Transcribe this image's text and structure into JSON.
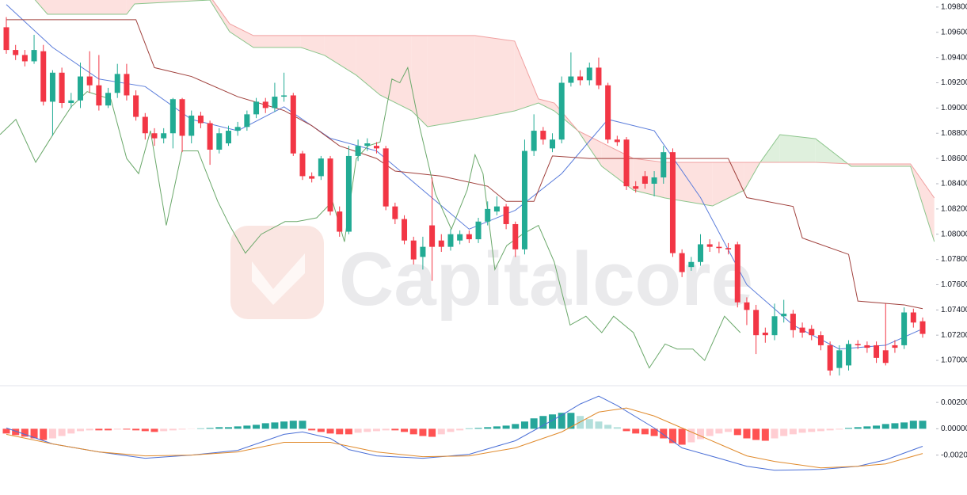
{
  "watermark": "Capitalcore",
  "chart_data": [
    {
      "type": "candlestick",
      "ylim": [
        1.06812,
        1.09856
      ],
      "yticks": [
        {
          "value": 1.098,
          "label": "1.09800"
        },
        {
          "value": 1.096,
          "label": "1.09600"
        },
        {
          "value": 1.094,
          "label": "1.09400"
        },
        {
          "value": 1.092,
          "label": "1.09200"
        },
        {
          "value": 1.09,
          "label": "1.09000"
        },
        {
          "value": 1.088,
          "label": "1.08800"
        },
        {
          "value": 1.086,
          "label": "1.08600"
        },
        {
          "value": 1.084,
          "label": "1.08400"
        },
        {
          "value": 1.082,
          "label": "1.08200"
        },
        {
          "value": 1.08,
          "label": "1.08000"
        },
        {
          "value": 1.078,
          "label": "1.07800"
        },
        {
          "value": 1.076,
          "label": "1.07600"
        },
        {
          "value": 1.074,
          "label": "1.07400"
        },
        {
          "value": 1.072,
          "label": "1.07200"
        },
        {
          "value": 1.07,
          "label": "1.07000"
        }
      ],
      "up_color": "#22ab94",
      "down_color": "#f23645",
      "open": [
        1.0964,
        1.0946,
        1.0942,
        1.0937,
        1.0945,
        1.0905,
        1.0928,
        1.0904,
        1.0906,
        1.0925,
        1.0918,
        1.0902,
        1.0912,
        1.0927,
        1.091,
        1.0893,
        1.088,
        1.0876,
        1.088,
        1.0907,
        1.0878,
        1.0894,
        1.0888,
        1.0867,
        1.0872,
        1.0882,
        1.0885,
        1.0895,
        1.0905,
        1.09,
        1.0909,
        1.091,
        1.0864,
        1.0846,
        1.0846,
        1.086,
        1.0818,
        1.0802,
        1.0862,
        1.087,
        1.087,
        1.0868,
        1.0822,
        1.0812,
        1.0795,
        1.0782,
        1.0807,
        1.0795,
        1.079,
        1.0795,
        1.08,
        1.0796,
        1.081,
        1.0818,
        1.0822,
        1.0808,
        1.0788,
        1.0866,
        1.0882,
        1.0868,
        1.0875,
        1.092,
        1.0925,
        1.0922,
        1.0932,
        1.0918,
        1.0875,
        1.0875,
        1.0838,
        1.0846,
        1.084,
        1.0845,
        1.0865,
        1.0785,
        1.0774,
        1.0778,
        1.0792,
        1.079,
        1.0789,
        1.0792,
        1.0746,
        1.074,
        1.0722,
        1.072,
        1.0735,
        1.0737,
        1.0726,
        1.0725,
        1.072,
        1.0712,
        1.0694,
        1.0696,
        1.0713,
        1.0712,
        1.0712,
        1.0708,
        1.0712,
        1.0712,
        1.0738,
        1.0731
      ],
      "high": [
        1.0972,
        1.095,
        1.0946,
        1.0958,
        1.095,
        1.093,
        1.0932,
        1.0912,
        1.0936,
        1.0945,
        1.0942,
        1.0916,
        1.0935,
        1.0935,
        1.0914,
        1.0896,
        1.0884,
        1.0884,
        1.0908,
        1.0908,
        1.0898,
        1.0897,
        1.089,
        1.0884,
        1.0886,
        1.0889,
        1.0898,
        1.0908,
        1.0908,
        1.092,
        1.0928,
        1.0912,
        1.0866,
        1.0849,
        1.0862,
        1.0862,
        1.0822,
        1.087,
        1.0875,
        1.0876,
        1.0873,
        1.087,
        1.0825,
        1.0815,
        1.0798,
        1.0798,
        1.0845,
        1.08,
        1.0804,
        1.0803,
        1.0803,
        1.0813,
        1.0826,
        1.083,
        1.0824,
        1.081,
        1.0875,
        1.0895,
        1.0885,
        1.088,
        1.0925,
        1.0944,
        1.093,
        1.0936,
        1.094,
        1.092,
        1.0878,
        1.0877,
        1.0842,
        1.085,
        1.085,
        1.087,
        1.0868,
        1.0788,
        1.0782,
        1.08,
        1.0796,
        1.0794,
        1.0793,
        1.0794,
        1.075,
        1.0744,
        1.0726,
        1.0745,
        1.0748,
        1.074,
        1.073,
        1.0728,
        1.0723,
        1.0715,
        1.0712,
        1.0716,
        1.0716,
        1.0715,
        1.0715,
        1.0745,
        1.0716,
        1.0742,
        1.0741,
        1.0734
      ],
      "low": [
        1.0943,
        1.0938,
        1.0933,
        1.0935,
        1.0902,
        1.0878,
        1.09,
        1.09,
        1.09,
        1.0912,
        1.0898,
        1.09,
        1.0908,
        1.0906,
        1.089,
        1.0875,
        1.087,
        1.0872,
        1.0868,
        1.0865,
        1.0872,
        1.0884,
        1.0855,
        1.0864,
        1.087,
        1.0878,
        1.0882,
        1.0892,
        1.0896,
        1.0897,
        1.0905,
        1.0862,
        1.0843,
        1.0841,
        1.0843,
        1.0815,
        1.0798,
        1.08,
        1.0858,
        1.0866,
        1.0864,
        1.0819,
        1.0808,
        1.0792,
        1.0776,
        1.0772,
        1.0763,
        1.0786,
        1.0787,
        1.0792,
        1.0793,
        1.0793,
        1.0807,
        1.0815,
        1.0804,
        1.0782,
        1.0784,
        1.0862,
        1.0871,
        1.0865,
        1.0872,
        1.0917,
        1.0918,
        1.0918,
        1.0915,
        1.0872,
        1.087,
        1.0835,
        1.0833,
        1.0836,
        1.083,
        1.084,
        1.0782,
        1.0766,
        1.0771,
        1.0775,
        1.0786,
        1.0785,
        1.0784,
        1.0742,
        1.0728,
        1.0705,
        1.0714,
        1.0716,
        1.073,
        1.0718,
        1.0718,
        1.0716,
        1.0708,
        1.0688,
        1.0688,
        1.0692,
        1.0709,
        1.0706,
        1.0698,
        1.0696,
        1.0706,
        1.0709,
        1.0726,
        1.0718
      ],
      "close": [
        1.0946,
        1.0942,
        1.0937,
        1.0946,
        1.0905,
        1.0928,
        1.0904,
        1.0906,
        1.0925,
        1.0918,
        1.0902,
        1.0912,
        1.0927,
        1.091,
        1.0893,
        1.088,
        1.0876,
        1.088,
        1.0907,
        1.0878,
        1.0894,
        1.0888,
        1.0867,
        1.088,
        1.0882,
        1.0885,
        1.0895,
        1.0905,
        1.09,
        1.0909,
        1.091,
        1.0864,
        1.0846,
        1.0844,
        1.086,
        1.0818,
        1.0802,
        1.0862,
        1.087,
        1.0872,
        1.0868,
        1.0822,
        1.0812,
        1.0795,
        1.078,
        1.079,
        1.079,
        1.079,
        1.08,
        1.08,
        1.0796,
        1.081,
        1.082,
        1.0822,
        1.0808,
        1.0788,
        1.0866,
        1.0882,
        1.0875,
        1.0875,
        1.092,
        1.0925,
        1.0922,
        1.0932,
        1.0918,
        1.0875,
        1.0873,
        1.0838,
        1.0836,
        1.084,
        1.0845,
        1.0865,
        1.0785,
        1.077,
        1.0778,
        1.0792,
        1.079,
        1.0789,
        1.0788,
        1.0746,
        1.074,
        1.072,
        1.072,
        1.0735,
        1.0737,
        1.0724,
        1.0722,
        1.072,
        1.0712,
        1.0692,
        1.0708,
        1.0713,
        1.0712,
        1.071,
        1.0702,
        1.0698,
        1.071,
        1.0738,
        1.073,
        1.0721
      ],
      "lines": [
        {
          "color": "#5b7ddb",
          "x": [
            0,
            5,
            10,
            15,
            20,
            25,
            30,
            35,
            40,
            45,
            50,
            55,
            60,
            65,
            70,
            75,
            80,
            85,
            90,
            95,
            99
          ],
          "values": [
            1.0982,
            1.0948,
            1.0923,
            1.0917,
            1.0891,
            1.0882,
            1.0901,
            1.0876,
            1.0866,
            1.0835,
            1.0804,
            1.0819,
            1.0848,
            1.0891,
            1.0882,
            1.0829,
            1.076,
            1.0728,
            1.0709,
            1.0712,
            1.0725
          ]
        },
        {
          "color": "#a0403c",
          "x": [
            0,
            14,
            16,
            20,
            25,
            30,
            33,
            36,
            40,
            42,
            47,
            52,
            54,
            57,
            59,
            63,
            78,
            80,
            85,
            86,
            91,
            92,
            97,
            99
          ],
          "values": [
            1.097,
            1.097,
            1.0932,
            1.0925,
            1.0909,
            1.0898,
            1.0886,
            1.087,
            1.086,
            1.085,
            1.0846,
            1.0838,
            1.0826,
            1.0826,
            1.0862,
            1.086,
            1.086,
            1.0829,
            1.0822,
            1.0797,
            1.0784,
            1.0747,
            1.0744,
            1.0741
          ]
        },
        {
          "color": "#6aa86a",
          "x": [
            -0.68,
            1.03,
            3.17,
            5.3,
            7.01,
            8.73,
            11.29,
            13.0,
            14.29,
            15.57,
            17.28,
            18.99,
            20.7,
            22.84,
            24.12,
            25.83,
            27.54,
            30.11,
            31.39,
            33.53,
            35.24,
            36.53,
            37.81,
            39.09,
            40.38,
            41.66,
            42.51,
            43.37,
            44.65,
            46.36,
            48.08,
            49.79,
            50.64,
            51.5,
            52.78,
            54.06,
            55.77,
            57.49,
            59.2,
            60.91,
            62.62,
            64.33,
            65.61,
            67.75,
            69.46,
            71.17,
            72.46,
            74.17,
            75.45,
            77.59,
            79.3
          ],
          "values": [
            1.0879,
            1.0891,
            1.0857,
            1.0882,
            1.0901,
            1.0913,
            1.0907,
            1.086,
            1.0848,
            1.0882,
            1.0807,
            1.0866,
            1.0866,
            1.0826,
            1.0807,
            1.0785,
            1.08,
            1.081,
            1.081,
            1.0813,
            1.0826,
            1.0794,
            1.086,
            1.087,
            1.0873,
            1.0923,
            1.092,
            1.0932,
            1.0885,
            1.0832,
            1.0804,
            1.0835,
            1.0863,
            1.0848,
            1.0772,
            1.0791,
            1.08,
            1.0807,
            1.0778,
            1.0728,
            1.0735,
            1.0722,
            1.0735,
            1.0722,
            1.0694,
            1.0713,
            1.0709,
            1.0709,
            1.07,
            1.0735,
            1.0722
          ]
        }
      ],
      "cloud": {
        "x": [
          2.74,
          4.45,
          13.0,
          13.86,
          21.98,
          24.12,
          26.69,
          31.82,
          34.39,
          37.81,
          40.38,
          43.8,
          45.51,
          50.64,
          54.92,
          57.49,
          59.2,
          61.76,
          64.33,
          67.75,
          71.17,
          76.3,
          79.73,
          81.44,
          83.58,
          87.43,
          91.27,
          97.69,
          100.26
        ],
        "span_a": [
          1.09888,
          1.09743,
          1.09743,
          1.09825,
          1.09856,
          1.09605,
          1.0948,
          1.0948,
          1.09417,
          1.0926,
          1.09103,
          1.08977,
          1.08852,
          1.08915,
          1.08977,
          1.0904,
          1.08977,
          1.0882,
          1.08538,
          1.08349,
          1.08287,
          1.08224,
          1.08349,
          1.08569,
          1.08789,
          1.08757,
          1.08538,
          1.08538,
          1.07941
        ],
        "span_b": [
          1.09888,
          1.09888,
          1.09888,
          1.09888,
          1.09888,
          1.09668,
          1.09574,
          1.09574,
          1.09574,
          1.09574,
          1.09574,
          1.09574,
          1.09574,
          1.09574,
          1.0953,
          1.09072,
          1.0904,
          1.0882,
          1.08726,
          1.086,
          1.08569,
          1.08569,
          1.08569,
          1.08569,
          1.08569,
          1.08569,
          1.08557,
          1.08557,
          1.08287
        ],
        "span_a_color": "#8bc58b",
        "span_b_color": "#f0a0a0",
        "up_fill": "#dff0dd",
        "down_fill": "#fde1df"
      }
    },
    {
      "type": "macd",
      "ylim": [
        -0.00503,
        0.00327
      ],
      "yticks": [
        {
          "value": 0.002,
          "label": "0.00200"
        },
        {
          "value": 0,
          "label": "0.00000"
        },
        {
          "value": -0.002,
          "label": "-0.00200"
        }
      ],
      "colors": {
        "up_grow": "#26a69a",
        "up_fall": "#b2dfdb",
        "down_grow": "#ff5252",
        "down_fall": "#ffcdd2"
      },
      "histogram": [
        -0.00036,
        -0.00048,
        -0.0006,
        -0.00073,
        -0.00085,
        -0.00073,
        -0.00055,
        -0.00036,
        -0.00018,
        -0.00012,
        -0.00012,
        -0.00012,
        -6e-05,
        -6e-05,
        -0.00012,
        -0.00018,
        -0.00024,
        -0.00018,
        -0.00012,
        -6e-05,
        -2e-05,
        3e-05,
        6e-05,
        0.00012,
        0.00012,
        0.00018,
        0.00024,
        0.0003,
        0.00042,
        0.00048,
        0.00055,
        0.00061,
        0.00061,
        -0.00012,
        -0.00024,
        -0.00036,
        -0.00042,
        -0.00042,
        -0.0003,
        -0.00024,
        -0.00018,
        -0.00012,
        -0.00012,
        -0.00024,
        -0.00042,
        -0.00055,
        -0.00061,
        -0.00042,
        -0.00024,
        -0.00012,
        3e-05,
        6e-05,
        0.00012,
        0.00018,
        0.00024,
        0.00036,
        0.00055,
        0.00079,
        0.00097,
        0.00109,
        0.00121,
        0.00121,
        0.00097,
        0.00073,
        0.00055,
        0.0003,
        0.00012,
        -0.00018,
        -0.00036,
        -0.00042,
        -0.00055,
        -0.00073,
        -0.00109,
        -0.00121,
        -0.00103,
        -0.00079,
        -0.00055,
        -0.00036,
        -0.00024,
        -0.00048,
        -0.00073,
        -0.00085,
        -0.00091,
        -0.00073,
        -0.00055,
        -0.00042,
        -0.0003,
        -0.00024,
        -0.00018,
        -0.00012,
        -6e-05,
        6e-05,
        0.00012,
        0.00018,
        0.00024,
        0.00036,
        0.00042,
        0.00048,
        0.00061,
        0.00061
      ],
      "lines": [
        {
          "color": "#4a6fd6",
          "x": [
            0,
            5,
            10,
            15,
            20,
            25,
            30,
            32,
            35,
            37,
            40,
            45,
            50,
            55,
            60,
            62,
            64,
            66,
            70,
            73,
            77,
            80,
            83,
            88,
            92,
            95,
            99
          ],
          "values": [
            6e-05,
            -0.00115,
            -0.00176,
            -0.00224,
            -0.002,
            -0.00164,
            -0.00042,
            -0.00024,
            -0.00073,
            -0.00158,
            -0.00206,
            -0.00224,
            -0.00194,
            -0.00091,
            0.00103,
            0.00188,
            0.00248,
            0.00176,
            6e-05,
            -0.00145,
            -0.00224,
            -0.00285,
            -0.00315,
            -0.00309,
            -0.00285,
            -0.00236,
            -0.00133
          ]
        },
        {
          "color": "#e08a2c",
          "x": [
            0,
            5,
            10,
            15,
            20,
            25,
            30,
            35,
            40,
            45,
            50,
            55,
            60,
            64,
            67,
            70,
            73,
            77,
            80,
            83,
            88,
            92,
            95,
            99
          ],
          "values": [
            -0.00042,
            -0.00115,
            -0.00176,
            -0.00206,
            -0.002,
            -0.00176,
            -0.00103,
            -0.00103,
            -0.00176,
            -0.00212,
            -0.00206,
            -0.00145,
            -0.00024,
            0.00127,
            0.00158,
            0.00097,
            6e-05,
            -0.00115,
            -0.00206,
            -0.00248,
            -0.00297,
            -0.00285,
            -0.00267,
            -0.00188
          ]
        }
      ]
    }
  ]
}
